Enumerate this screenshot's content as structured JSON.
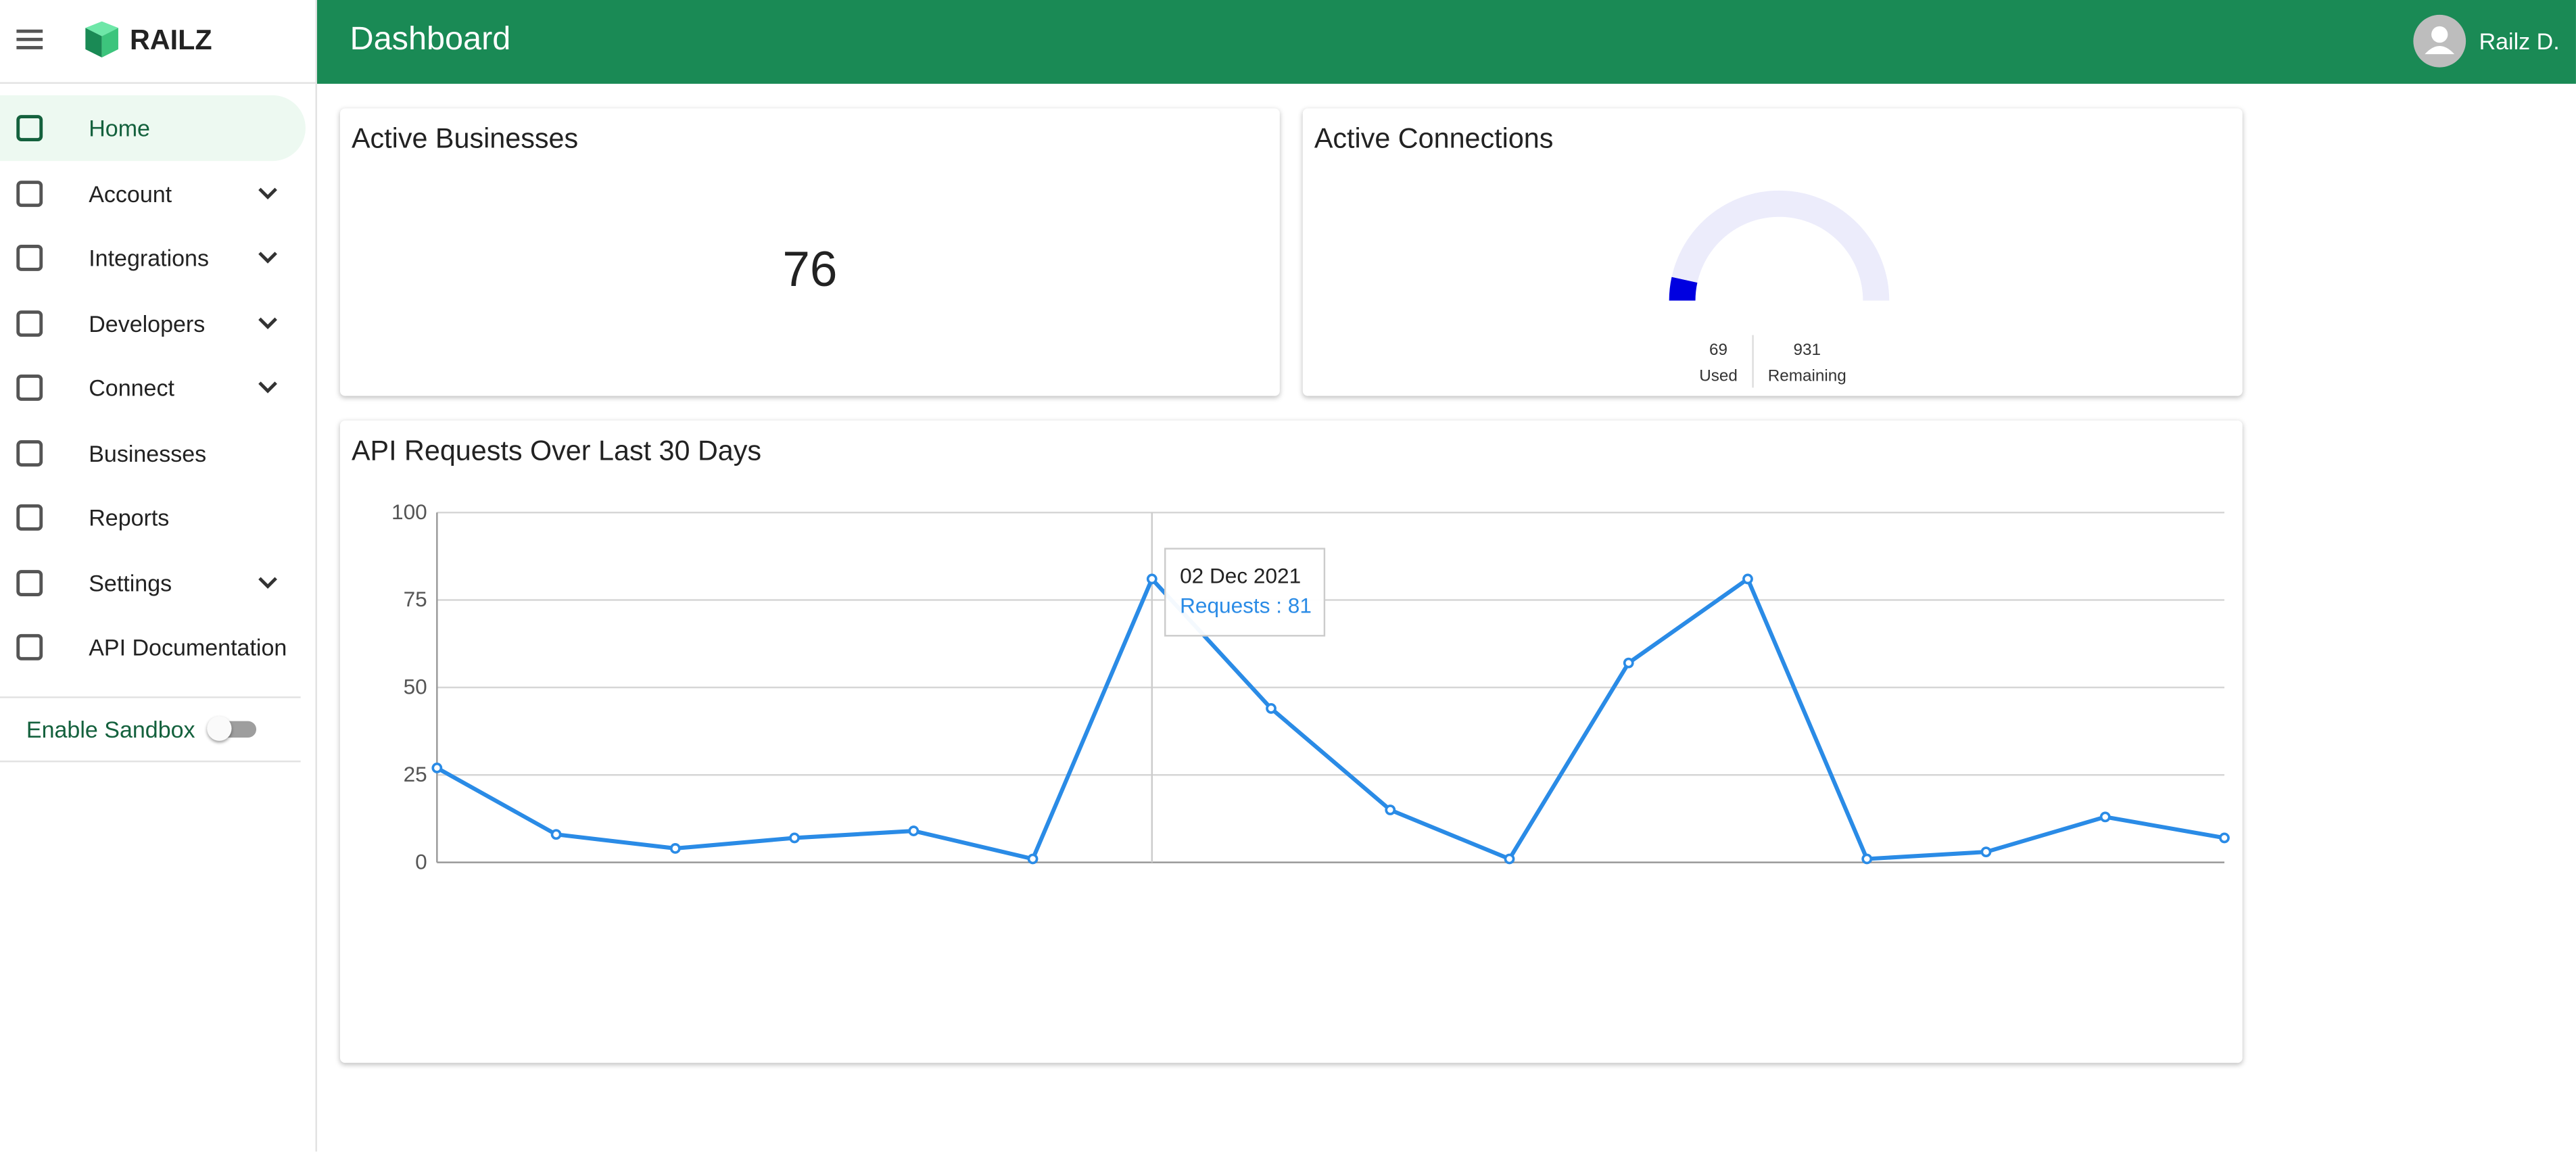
{
  "header": {
    "brand": "RAILZ",
    "title": "Dashboard",
    "user": "Railz D."
  },
  "nav": [
    {
      "label": "Home",
      "active": true
    },
    {
      "label": "Account",
      "expandable": true
    },
    {
      "label": "Integrations",
      "expandable": true
    },
    {
      "label": "Developers",
      "expandable": true
    },
    {
      "label": "Connect",
      "expandable": true
    },
    {
      "label": "Businesses"
    },
    {
      "label": "Reports"
    },
    {
      "label": "Settings",
      "expandable": true
    },
    {
      "label": "API Documentation"
    }
  ],
  "sandbox": "Enable Sandbox",
  "businesses": {
    "title": "Active Businesses",
    "value": 76
  },
  "chart_data": [
    {
      "type": "gauge",
      "title": "Active Connections",
      "categories": [
        "Used",
        "Remaining"
      ],
      "values": [
        69,
        931
      ],
      "colors": [
        "#0000e0",
        "#ececfb"
      ]
    },
    {
      "type": "line",
      "title": "API Requests Over Last 30 Days",
      "series": [
        {
          "color": "#2a8be6",
          "values": [
            27,
            8,
            4,
            7,
            9,
            1,
            81,
            44,
            15,
            1,
            57,
            81,
            1,
            3,
            13,
            7
          ]
        }
      ],
      "ylim": [
        0,
        100
      ],
      "yticks": [
        0,
        25,
        50,
        75,
        100
      ],
      "grid": true,
      "tooltip": {
        "date": "02 Dec 2021",
        "label": "Requests : 81"
      }
    }
  ]
}
